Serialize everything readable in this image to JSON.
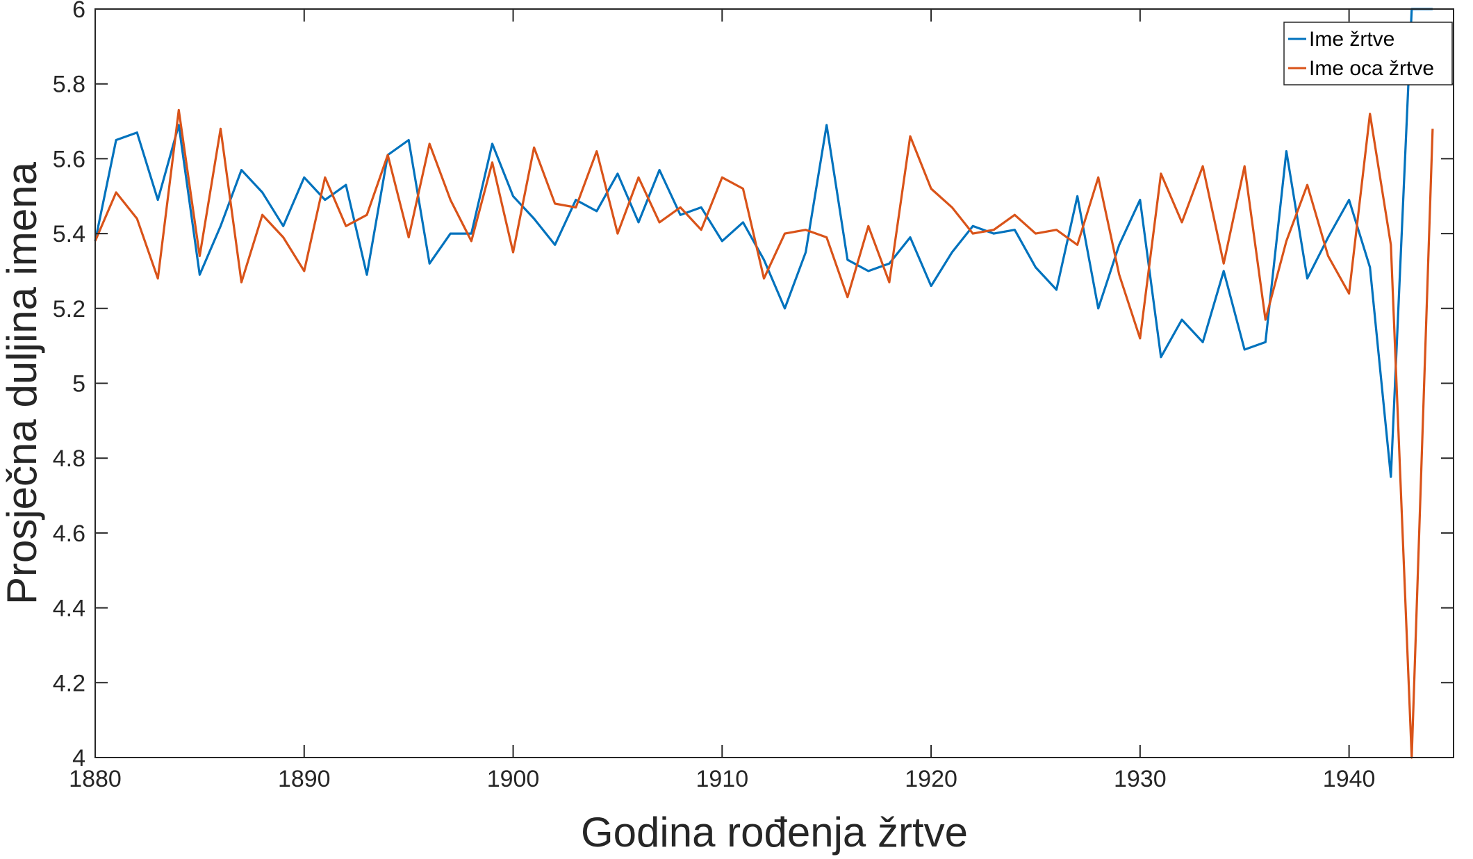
{
  "chart_data": {
    "type": "line",
    "title": "",
    "xlabel": "Godina rođenja žrtve",
    "ylabel": "Prosječna duljina imena",
    "xlim": [
      1880,
      1945
    ],
    "ylim": [
      4,
      6
    ],
    "xticks": [
      1880,
      1890,
      1900,
      1910,
      1920,
      1930,
      1940
    ],
    "yticks": [
      4,
      4.2,
      4.4,
      4.6,
      4.8,
      5,
      5.2,
      5.4,
      5.6,
      5.8,
      6
    ],
    "grid": false,
    "legend_position": "top-right",
    "x": [
      1880,
      1881,
      1882,
      1883,
      1884,
      1885,
      1886,
      1887,
      1888,
      1889,
      1890,
      1891,
      1892,
      1893,
      1894,
      1895,
      1896,
      1897,
      1898,
      1899,
      1900,
      1901,
      1902,
      1903,
      1904,
      1905,
      1906,
      1907,
      1908,
      1909,
      1910,
      1911,
      1912,
      1913,
      1914,
      1915,
      1916,
      1917,
      1918,
      1919,
      1920,
      1921,
      1922,
      1923,
      1924,
      1925,
      1926,
      1927,
      1928,
      1929,
      1930,
      1931,
      1932,
      1933,
      1934,
      1935,
      1936,
      1937,
      1938,
      1939,
      1940,
      1941,
      1942,
      1943,
      1944
    ],
    "series": [
      {
        "name": "Ime žrtve",
        "color": "#0072BD",
        "values": [
          5.38,
          5.65,
          5.67,
          5.49,
          5.69,
          5.29,
          5.42,
          5.57,
          5.51,
          5.42,
          5.55,
          5.49,
          5.53,
          5.29,
          5.61,
          5.65,
          5.32,
          5.4,
          5.4,
          5.64,
          5.5,
          5.44,
          5.37,
          5.49,
          5.46,
          5.56,
          5.43,
          5.57,
          5.45,
          5.47,
          5.38,
          5.43,
          5.33,
          5.2,
          5.35,
          5.69,
          5.33,
          5.3,
          5.32,
          5.39,
          5.26,
          5.35,
          5.42,
          5.4,
          5.41,
          5.31,
          5.25,
          5.5,
          5.2,
          5.37,
          5.49,
          5.07,
          5.17,
          5.11,
          5.3,
          5.09,
          5.11,
          5.62,
          5.28,
          5.39,
          5.49,
          5.31,
          4.75,
          6.0,
          6.0
        ]
      },
      {
        "name": "Ime oca žrtve",
        "color": "#D95319",
        "values": [
          5.38,
          5.51,
          5.44,
          5.28,
          5.73,
          5.34,
          5.68,
          5.27,
          5.45,
          5.39,
          5.3,
          5.55,
          5.42,
          5.45,
          5.61,
          5.39,
          5.64,
          5.49,
          5.38,
          5.59,
          5.35,
          5.63,
          5.48,
          5.47,
          5.62,
          5.4,
          5.55,
          5.43,
          5.47,
          5.41,
          5.55,
          5.52,
          5.28,
          5.4,
          5.41,
          5.39,
          5.23,
          5.42,
          5.27,
          5.66,
          5.52,
          5.47,
          5.4,
          5.41,
          5.45,
          5.4,
          5.41,
          5.37,
          5.55,
          5.29,
          5.12,
          5.56,
          5.43,
          5.58,
          5.32,
          5.58,
          5.17,
          5.38,
          5.53,
          5.34,
          5.24,
          5.72,
          5.37,
          4.0,
          5.68
        ]
      }
    ]
  }
}
